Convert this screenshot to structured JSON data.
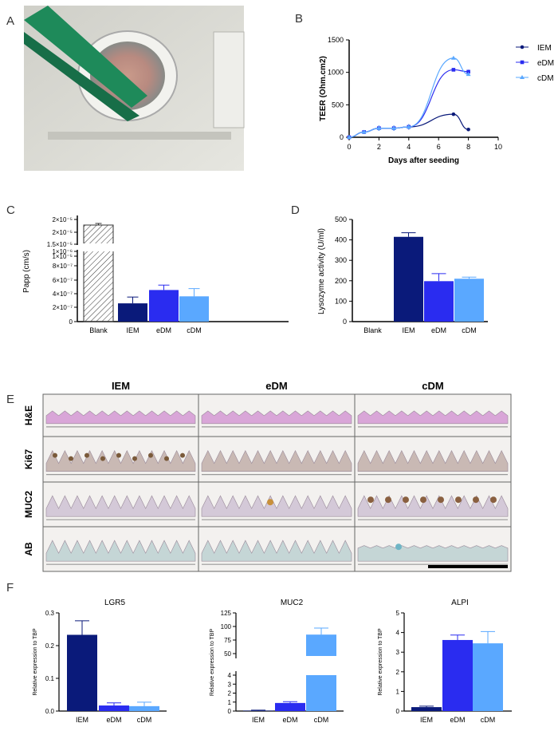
{
  "panels": {
    "A": "A",
    "B": "B",
    "C": "C",
    "D": "D",
    "E": "E",
    "F": "F"
  },
  "colors": {
    "IEM": "#0a1a7a",
    "eDM": "#2a2cf0",
    "cDM": "#5aa8ff",
    "bg_photo": "#d8d8d2",
    "clip": "#1e8a5a"
  },
  "chart_data": [
    {
      "id": "B",
      "type": "line",
      "xlabel": "Days after seeding",
      "ylabel": "TEER (Ohm.cm2)",
      "xlim": [
        0,
        10
      ],
      "ylim": [
        0,
        1500
      ],
      "xticks": [
        "0",
        "2",
        "4",
        "6",
        "8",
        "10"
      ],
      "yticks": [
        "0",
        "500",
        "1000",
        "1500"
      ],
      "series": [
        {
          "name": "IEM",
          "x": [
            0,
            1,
            2,
            3,
            4,
            7,
            8
          ],
          "y": [
            0,
            80,
            140,
            140,
            160,
            355,
            120
          ],
          "err": [
            0,
            20,
            40,
            40,
            40,
            10,
            10
          ]
        },
        {
          "name": "eDM",
          "x": [
            0,
            1,
            2,
            3,
            4,
            7,
            8
          ],
          "y": [
            0,
            80,
            140,
            140,
            160,
            1040,
            1010
          ],
          "err": [
            0,
            20,
            40,
            40,
            40,
            10,
            30
          ]
        },
        {
          "name": "cDM",
          "x": [
            0,
            1,
            2,
            3,
            4,
            7,
            8
          ],
          "y": [
            0,
            80,
            140,
            140,
            160,
            1220,
            970
          ],
          "err": [
            0,
            20,
            40,
            40,
            40,
            10,
            20
          ]
        }
      ],
      "legend": [
        "IEM",
        "eDM",
        "cDM"
      ]
    },
    {
      "id": "C",
      "type": "bar",
      "ylabel": "Papp  (cm/s)",
      "categories": [
        "Blank",
        "IEM",
        "eDM",
        "cDM"
      ],
      "upper_ticks": [
        "2×10⁻⁵",
        "2×10⁻⁵",
        "1.5×10⁻⁵",
        "1×10⁻⁵"
      ],
      "lower_ticks": [
        "1×10⁻⁶",
        "8×10⁻⁷",
        "6×10⁻⁷",
        "4×10⁻⁷",
        "2×10⁻⁷",
        "0"
      ],
      "values": [
        2.3e-05,
        2.6e-07,
        4.5e-07,
        3.6e-07
      ],
      "errors": [
        1e-07,
        9e-08,
        7e-08,
        1.1e-07
      ]
    },
    {
      "id": "D",
      "type": "bar",
      "ylabel": "Lysozyme activity (U/ml)",
      "categories": [
        "Blank",
        "IEM",
        "eDM",
        "cDM"
      ],
      "ylim": [
        0,
        500
      ],
      "yticks": [
        "0",
        "100",
        "200",
        "300",
        "400",
        "500"
      ],
      "values": [
        0,
        415,
        198,
        210
      ],
      "errors": [
        0,
        20,
        37,
        8
      ]
    },
    {
      "id": "F1",
      "type": "bar",
      "title": "LGR5",
      "ylabel": "Relative expression to TBP",
      "categories": [
        "IEM",
        "eDM",
        "cDM"
      ],
      "ylim": [
        0,
        0.3
      ],
      "yticks": [
        "0.0",
        "0.1",
        "0.2",
        "0.3"
      ],
      "values": [
        0.233,
        0.017,
        0.015
      ],
      "errors": [
        0.043,
        0.008,
        0.012
      ]
    },
    {
      "id": "F2",
      "type": "bar",
      "title": "MUC2",
      "ylabel": "Relative expression to TBP",
      "categories": [
        "IEM",
        "eDM",
        "cDM"
      ],
      "lower_ticks": [
        "0",
        "1",
        "2",
        "3",
        "4"
      ],
      "upper_ticks": [
        "50",
        "75",
        "100",
        "125"
      ],
      "values": [
        0.05,
        0.9,
        85
      ],
      "errors": [
        0.05,
        0.15,
        12
      ]
    },
    {
      "id": "F3",
      "type": "bar",
      "title": "ALPI",
      "ylabel": "Relative expression to TBP",
      "categories": [
        "IEM",
        "eDM",
        "cDM"
      ],
      "ylim": [
        0,
        5
      ],
      "yticks": [
        "0",
        "1",
        "2",
        "3",
        "4",
        "5"
      ],
      "values": [
        0.2,
        3.62,
        3.45
      ],
      "errors": [
        0.05,
        0.25,
        0.6
      ]
    }
  ],
  "histology": {
    "columns": [
      "IEM",
      "eDM",
      "cDM"
    ],
    "rows": [
      "H&E",
      "Ki67",
      "MUC2",
      "AB"
    ]
  }
}
